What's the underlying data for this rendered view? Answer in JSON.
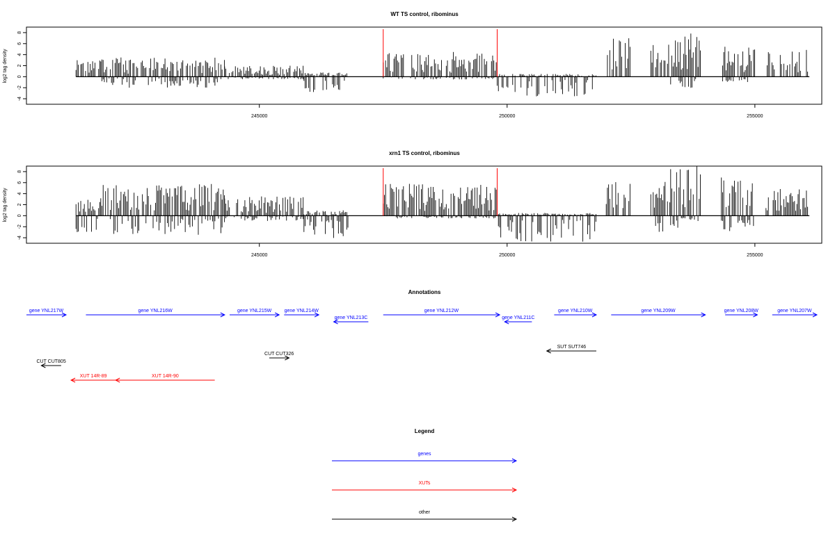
{
  "chart_data": [
    {
      "type": "bar",
      "title": "WT TS control, ribominus",
      "ylabel": "log2 tag density",
      "xlabel": "",
      "xlim": [
        240300,
        256350
      ],
      "ylim": [
        -5,
        9
      ],
      "x_ticks": [
        245000,
        250000,
        255000
      ],
      "y_ticks": [
        -4,
        -2,
        0,
        2,
        4,
        6,
        8
      ],
      "marker_lines": [
        247500,
        249800
      ],
      "marker_color": "#ff0000",
      "segments": [
        {
          "start": 241300,
          "end": 241800,
          "max": 3.0,
          "neg": 0
        },
        {
          "start": 241800,
          "end": 244300,
          "max": 3.5,
          "neg": -2.0
        },
        {
          "start": 244300,
          "end": 245900,
          "max": 2.0,
          "neg": -0.5
        },
        {
          "start": 245900,
          "end": 246800,
          "max": 0.8,
          "neg": -3.0
        },
        {
          "start": 247500,
          "end": 249800,
          "max": 4.5,
          "neg": -0.5
        },
        {
          "start": 249800,
          "end": 251800,
          "max": 0.5,
          "neg": -3.8
        },
        {
          "start": 252000,
          "end": 252500,
          "max": 7.0,
          "neg": 0
        },
        {
          "start": 252900,
          "end": 253300,
          "max": 6.0,
          "neg": 0
        },
        {
          "start": 253300,
          "end": 253900,
          "max": 8.5,
          "neg": -2.5
        },
        {
          "start": 254300,
          "end": 255000,
          "max": 5.5,
          "neg": -1.0
        },
        {
          "start": 255200,
          "end": 256100,
          "max": 5.0,
          "neg": 0
        }
      ]
    },
    {
      "type": "bar",
      "title": "xrn1 TS control, ribominus",
      "ylabel": "log2 tag density",
      "xlabel": "",
      "xlim": [
        240300,
        256350
      ],
      "ylim": [
        -5,
        9
      ],
      "x_ticks": [
        245000,
        250000,
        255000
      ],
      "y_ticks": [
        -4,
        -2,
        0,
        2,
        4,
        6,
        8
      ],
      "marker_lines": [
        247500,
        249800
      ],
      "marker_color": "#ff0000",
      "segments": [
        {
          "start": 241300,
          "end": 241800,
          "max": 3.0,
          "neg": -3.0
        },
        {
          "start": 241800,
          "end": 244300,
          "max": 5.8,
          "neg": -3.5
        },
        {
          "start": 244300,
          "end": 245900,
          "max": 3.5,
          "neg": -1.0
        },
        {
          "start": 245900,
          "end": 246800,
          "max": 1.0,
          "neg": -4.2
        },
        {
          "start": 247500,
          "end": 249800,
          "max": 5.8,
          "neg": -0.5
        },
        {
          "start": 249800,
          "end": 251800,
          "max": 0.5,
          "neg": -4.8
        },
        {
          "start": 252000,
          "end": 252500,
          "max": 7.0,
          "neg": 0
        },
        {
          "start": 252900,
          "end": 253300,
          "max": 6.5,
          "neg": -3.0
        },
        {
          "start": 253300,
          "end": 253900,
          "max": 9.0,
          "neg": -2.5
        },
        {
          "start": 254300,
          "end": 255000,
          "max": 7.0,
          "neg": -3.0
        },
        {
          "start": 255200,
          "end": 256100,
          "max": 5.0,
          "neg": 0
        }
      ]
    }
  ],
  "annotations": {
    "title": "Annotations",
    "colors": {
      "gene": "#0000ff",
      "xut": "#ff0000",
      "other": "#000000"
    },
    "genes": [
      {
        "label": "gene YNL217W",
        "start": 240300,
        "end": 241100,
        "dir": "right",
        "track": 0
      },
      {
        "label": "gene YNL216W",
        "start": 241500,
        "end": 244300,
        "dir": "right",
        "track": 0
      },
      {
        "label": "gene YNL215W",
        "start": 244400,
        "end": 245400,
        "dir": "right",
        "track": 0
      },
      {
        "label": "gene YNL214W",
        "start": 245500,
        "end": 246200,
        "dir": "right",
        "track": 0
      },
      {
        "label": "gene YNL213C",
        "start": 246500,
        "end": 247200,
        "dir": "left",
        "track": 1
      },
      {
        "label": "gene YNL212W",
        "start": 247500,
        "end": 249850,
        "dir": "right",
        "track": 0
      },
      {
        "label": "gene YNL211C",
        "start": 249950,
        "end": 250500,
        "dir": "left",
        "track": 1
      },
      {
        "label": "gene YNL210W",
        "start": 250950,
        "end": 251800,
        "dir": "right",
        "track": 0
      },
      {
        "label": "gene YNL209W",
        "start": 252100,
        "end": 254000,
        "dir": "right",
        "track": 0
      },
      {
        "label": "gene YNL208W",
        "start": 254400,
        "end": 255050,
        "dir": "right",
        "track": 0
      },
      {
        "label": "gene YNL207W",
        "start": 255350,
        "end": 256650,
        "dir": "right",
        "track": 0
      }
    ],
    "others": [
      {
        "label": "SUT SUT746",
        "start": 250800,
        "end": 251800,
        "dir": "left",
        "track": 0
      },
      {
        "label": "CUT CUT326",
        "start": 245200,
        "end": 245600,
        "dir": "right",
        "track": 1
      },
      {
        "label": "CUT CUT805",
        "start": 240600,
        "end": 241000,
        "dir": "left",
        "track": 2
      }
    ],
    "xuts": [
      {
        "label": "XUT 14R-89",
        "start": 241200,
        "end": 242100,
        "dir": "left",
        "track": 3
      },
      {
        "label": "XUT 14R-90",
        "start": 242100,
        "end": 244100,
        "dir": "left",
        "track": 3
      }
    ]
  },
  "legend": {
    "title": "Legend",
    "items": [
      {
        "label": "genes",
        "color": "#0000ff"
      },
      {
        "label": "XUTs",
        "color": "#ff0000"
      },
      {
        "label": "other",
        "color": "#000000"
      }
    ]
  }
}
